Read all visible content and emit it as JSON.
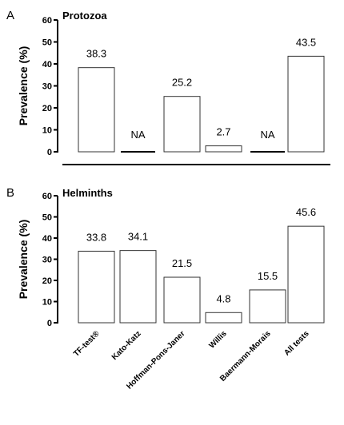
{
  "chart_data": [
    {
      "type": "bar",
      "panel": "A",
      "title": "Protozoa",
      "ylabel": "Prevalence (%)",
      "ylim": [
        0,
        60
      ],
      "yticks": [
        "0",
        "10",
        "20",
        "30",
        "40",
        "50",
        "60"
      ],
      "categories": [
        "TF-test®",
        "Kato-Katz",
        "Hoffman-Pons-Janer",
        "Willis",
        "Baermann-Morais",
        "All tests"
      ],
      "values": [
        38.3,
        0,
        25.2,
        2.7,
        0,
        43.5
      ],
      "labels": [
        "38.3",
        "NA",
        "25.2",
        "2.7",
        "NA",
        "43.5"
      ]
    },
    {
      "type": "bar",
      "panel": "B",
      "title": "Helminths",
      "ylabel": "Prevalence (%)",
      "ylim": [
        0,
        60
      ],
      "yticks": [
        "0",
        "10",
        "20",
        "30",
        "40",
        "50",
        "60"
      ],
      "categories": [
        "TF-test®",
        "Kato-Katz",
        "Hoffman-Pons-Janer",
        "Willis",
        "Baermann-Morais",
        "All tests"
      ],
      "values": [
        33.8,
        34.1,
        21.5,
        4.8,
        15.5,
        45.6
      ],
      "labels": [
        "33.8",
        "34.1",
        "21.5",
        "4.8",
        "15.5",
        "45.6"
      ]
    }
  ]
}
